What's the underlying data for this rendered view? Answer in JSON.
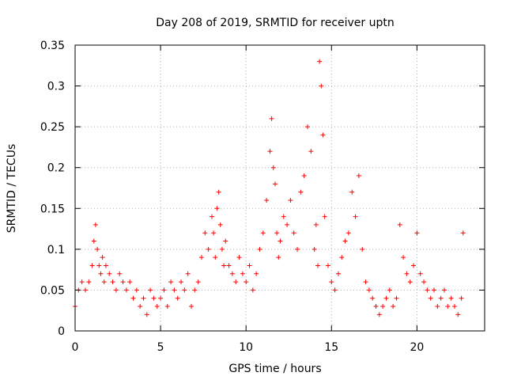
{
  "chart_data": {
    "type": "scatter",
    "title": "Day 208 of 2019, SRMTID for receiver uptn",
    "xlabel": "GPS time / hours",
    "ylabel": "SRMTID / TECUs",
    "xlim": [
      0,
      23.96
    ],
    "ylim": [
      0,
      0.35
    ],
    "x_ticks": [
      0,
      5,
      10,
      15,
      20
    ],
    "x_tick_labels": [
      "0",
      "5",
      "10",
      "15",
      "20"
    ],
    "y_ticks": [
      0,
      0.05,
      0.1,
      0.15,
      0.2,
      0.25,
      0.3,
      0.35
    ],
    "y_tick_labels": [
      "0",
      "0.05",
      "0.1",
      "0.15",
      "0.2",
      "0.25",
      "0.3",
      "0.35"
    ],
    "grid": true,
    "marker": "+",
    "colors": {
      "series": "#ff0000",
      "grid": "#b0b0b0",
      "axes": "#000000"
    },
    "series": [
      {
        "name": "SRMTID",
        "x": [
          0.0,
          0.2,
          0.4,
          0.6,
          0.8,
          1.0,
          1.1,
          1.2,
          1.3,
          1.4,
          1.5,
          1.6,
          1.7,
          1.8,
          2.0,
          2.2,
          2.4,
          2.6,
          2.8,
          3.0,
          3.2,
          3.4,
          3.6,
          3.8,
          4.0,
          4.2,
          4.4,
          4.6,
          4.8,
          5.0,
          5.2,
          5.4,
          5.6,
          5.8,
          6.0,
          6.2,
          6.4,
          6.6,
          6.8,
          7.0,
          7.2,
          7.4,
          7.6,
          7.8,
          8.0,
          8.1,
          8.2,
          8.3,
          8.4,
          8.5,
          8.6,
          8.7,
          8.8,
          9.0,
          9.2,
          9.4,
          9.6,
          9.8,
          10.0,
          10.2,
          10.4,
          10.6,
          10.8,
          11.0,
          11.2,
          11.4,
          11.5,
          11.6,
          11.7,
          11.8,
          11.9,
          12.0,
          12.2,
          12.4,
          12.6,
          12.8,
          13.0,
          13.2,
          13.4,
          13.6,
          13.8,
          14.0,
          14.1,
          14.2,
          14.3,
          14.4,
          14.5,
          14.6,
          14.8,
          15.0,
          15.2,
          15.4,
          15.6,
          15.8,
          16.0,
          16.2,
          16.4,
          16.6,
          16.8,
          17.0,
          17.2,
          17.4,
          17.6,
          17.8,
          18.0,
          18.2,
          18.4,
          18.6,
          18.8,
          19.0,
          19.2,
          19.4,
          19.6,
          19.8,
          20.0,
          20.2,
          20.4,
          20.6,
          20.8,
          21.0,
          21.2,
          21.4,
          21.6,
          21.8,
          22.0,
          22.2,
          22.4,
          22.6,
          22.7
        ],
        "y": [
          0.03,
          0.05,
          0.06,
          0.05,
          0.06,
          0.08,
          0.11,
          0.13,
          0.1,
          0.08,
          0.07,
          0.09,
          0.06,
          0.08,
          0.07,
          0.06,
          0.05,
          0.07,
          0.06,
          0.05,
          0.06,
          0.04,
          0.05,
          0.03,
          0.04,
          0.02,
          0.05,
          0.04,
          0.03,
          0.04,
          0.05,
          0.03,
          0.06,
          0.05,
          0.04,
          0.06,
          0.05,
          0.07,
          0.03,
          0.05,
          0.06,
          0.09,
          0.12,
          0.1,
          0.14,
          0.12,
          0.09,
          0.15,
          0.17,
          0.13,
          0.1,
          0.08,
          0.11,
          0.08,
          0.07,
          0.06,
          0.09,
          0.07,
          0.06,
          0.08,
          0.05,
          0.07,
          0.1,
          0.12,
          0.16,
          0.22,
          0.26,
          0.2,
          0.18,
          0.12,
          0.09,
          0.11,
          0.14,
          0.13,
          0.16,
          0.12,
          0.1,
          0.17,
          0.19,
          0.25,
          0.22,
          0.1,
          0.13,
          0.08,
          0.33,
          0.3,
          0.24,
          0.14,
          0.08,
          0.06,
          0.05,
          0.07,
          0.09,
          0.11,
          0.12,
          0.17,
          0.14,
          0.19,
          0.1,
          0.06,
          0.05,
          0.04,
          0.03,
          0.02,
          0.03,
          0.04,
          0.05,
          0.03,
          0.04,
          0.13,
          0.09,
          0.07,
          0.06,
          0.08,
          0.12,
          0.07,
          0.06,
          0.05,
          0.04,
          0.05,
          0.03,
          0.04,
          0.05,
          0.03,
          0.04,
          0.03,
          0.02,
          0.04,
          0.12
        ]
      }
    ]
  }
}
